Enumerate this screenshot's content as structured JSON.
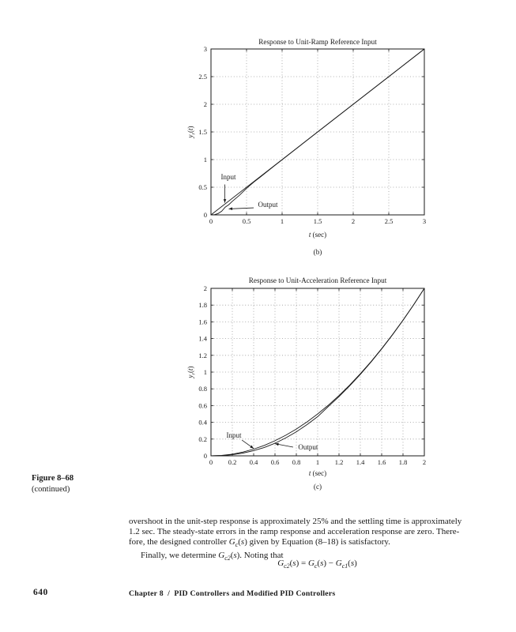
{
  "colors": {
    "ink": "#1a1a1a",
    "grid": "#9a9a9a"
  },
  "figure": {
    "label": "Figure 8–68",
    "sublabel": "(continued)"
  },
  "footer": {
    "page_number": "640",
    "chapter": "Chapter 8  /  PID Controllers and Modified PID Controllers"
  },
  "paragraph": {
    "lines": [
      {
        "indent": false,
        "parts": [
          {
            "t": "overshoot in the unit-step response is approximately 25% and the settling time is approximately"
          }
        ]
      },
      {
        "indent": false,
        "parts": [
          {
            "t": "1.2 sec. The steady-state errors in the ramp response and acceleration response are zero. There-"
          }
        ]
      },
      {
        "indent": false,
        "parts": [
          {
            "t": "fore, the designed controller "
          },
          {
            "t": "G",
            "s": "i"
          },
          {
            "t": "c",
            "s": "sub i"
          },
          {
            "t": "("
          },
          {
            "t": "s",
            "s": "i"
          },
          {
            "t": ") given by Equation (8–18) is satisfactory."
          }
        ]
      },
      {
        "indent": true,
        "parts": [
          {
            "t": "Finally, we determine "
          },
          {
            "t": "G",
            "s": "i"
          },
          {
            "t": "c2",
            "s": "sub i"
          },
          {
            "t": "("
          },
          {
            "t": "s",
            "s": "i"
          },
          {
            "t": "). Noting that"
          }
        ]
      }
    ]
  },
  "equation": {
    "parts": [
      {
        "t": "G",
        "s": "i"
      },
      {
        "t": "c2",
        "s": "sub i"
      },
      {
        "t": "("
      },
      {
        "t": "s",
        "s": "i"
      },
      {
        "t": ") = "
      },
      {
        "t": "G",
        "s": "i"
      },
      {
        "t": "c",
        "s": "sub i"
      },
      {
        "t": "("
      },
      {
        "t": "s",
        "s": "i"
      },
      {
        "t": ") − "
      },
      {
        "t": "G",
        "s": "i"
      },
      {
        "t": "c1",
        "s": "sub i"
      },
      {
        "t": "("
      },
      {
        "t": "s",
        "s": "i"
      },
      {
        "t": ")"
      }
    ]
  },
  "chart_data": [
    {
      "type": "line",
      "title": "Response to Unit-Ramp Reference Input",
      "sublabel": "(b)",
      "xlabel": "t (sec)",
      "ylabel": "yr(t)",
      "xlabel_parts": [
        {
          "t": "t",
          "s": "i"
        },
        {
          "t": " (sec)"
        }
      ],
      "ylabel_parts": [
        {
          "t": "y",
          "s": "i"
        },
        {
          "t": "r",
          "s": "sub i"
        },
        {
          "t": "("
        },
        {
          "t": "t",
          "s": "i"
        },
        {
          "t": ")"
        }
      ],
      "xlim": [
        0,
        3
      ],
      "ylim": [
        0,
        3
      ],
      "grid": true,
      "xticks": {
        "values": [
          0,
          0.5,
          1,
          1.5,
          2,
          2.5,
          3
        ],
        "labels": [
          "0",
          "0.5",
          "1",
          "1.5",
          "2",
          "2.5",
          "3"
        ]
      },
      "yticks": {
        "values": [
          0,
          0.5,
          1,
          1.5,
          2,
          2.5,
          3
        ],
        "labels": [
          "0",
          "0.5",
          "1",
          "1.5",
          "2",
          "2.5",
          "3"
        ]
      },
      "series": [
        {
          "name": "Input",
          "x": [
            0,
            3
          ],
          "y": [
            0,
            3
          ]
        },
        {
          "name": "Output",
          "x": [
            0,
            0.05,
            0.1,
            0.15,
            0.2,
            0.25,
            0.3,
            0.4,
            0.5,
            0.6,
            0.7,
            0.9,
            1,
            1.5,
            2,
            2.5,
            3
          ],
          "y": [
            0,
            0.005,
            0.025,
            0.065,
            0.14,
            0.185,
            0.245,
            0.355,
            0.48,
            0.59,
            0.692,
            0.895,
            0.995,
            1.5,
            2,
            2.5,
            3
          ]
        }
      ],
      "annotations": [
        {
          "label": "Input",
          "tx": 0.245,
          "ty": 0.64,
          "x1": 0.195,
          "y1": 0.55,
          "x2": 0.195,
          "y2": 0.22
        },
        {
          "label": "Output",
          "tx": 0.8,
          "ty": 0.143,
          "x1": 0.6,
          "y1": 0.128,
          "x2": 0.25,
          "y2": 0.108
        }
      ]
    },
    {
      "type": "line",
      "title": "Response to Unit-Acceleration Reference Input",
      "sublabel": "(c)",
      "xlabel": "t (sec)",
      "ylabel": "yr(t)",
      "xlabel_parts": [
        {
          "t": "t",
          "s": "i"
        },
        {
          "t": " (sec)"
        }
      ],
      "ylabel_parts": [
        {
          "t": "y",
          "s": "i"
        },
        {
          "t": "r",
          "s": "sub i"
        },
        {
          "t": "("
        },
        {
          "t": "t",
          "s": "i"
        },
        {
          "t": ")"
        }
      ],
      "xlim": [
        0,
        2
      ],
      "ylim": [
        0,
        2
      ],
      "grid": true,
      "xticks": {
        "values": [
          0,
          0.2,
          0.4,
          0.6,
          0.8,
          1,
          1.2,
          1.4,
          1.6,
          1.8,
          2
        ],
        "labels": [
          "0",
          "0.2",
          "0.4",
          "0.6",
          "0.8",
          "1",
          "1.2",
          "1.4",
          "1.6",
          "1.8",
          "2"
        ]
      },
      "yticks": {
        "values": [
          0,
          0.2,
          0.4,
          0.6,
          0.8,
          1,
          1.2,
          1.4,
          1.6,
          1.8,
          2
        ],
        "labels": [
          "0",
          "0.2",
          "0.4",
          "0.6",
          "0.8",
          "1",
          "1.2",
          "1.4",
          "1.6",
          "1.8",
          "2"
        ]
      },
      "series": [
        {
          "name": "Input",
          "x": [
            0,
            0.1,
            0.2,
            0.3,
            0.4,
            0.5,
            0.6,
            0.7,
            0.8,
            0.9,
            1,
            1.1,
            1.2,
            1.3,
            1.4,
            1.5,
            1.6,
            1.7,
            1.8,
            1.9,
            2
          ],
          "y": [
            0,
            0.005,
            0.02,
            0.045,
            0.08,
            0.125,
            0.18,
            0.245,
            0.32,
            0.405,
            0.5,
            0.605,
            0.72,
            0.845,
            0.98,
            1.125,
            1.28,
            1.445,
            1.62,
            1.805,
            2
          ]
        },
        {
          "name": "Output",
          "x": [
            0,
            0.1,
            0.2,
            0.3,
            0.4,
            0.5,
            0.6,
            0.7,
            0.8,
            0.9,
            1,
            1.1,
            1.2,
            1.3,
            1.4,
            1.5,
            1.6,
            1.7,
            1.8,
            1.9,
            2
          ],
          "y": [
            0,
            0.003,
            0.013,
            0.033,
            0.062,
            0.1,
            0.15,
            0.213,
            0.287,
            0.373,
            0.468,
            0.59,
            0.708,
            0.836,
            0.973,
            1.12,
            1.276,
            1.442,
            1.618,
            1.804,
            2
          ]
        }
      ],
      "annotations": [
        {
          "label": "Input",
          "tx": 0.215,
          "ty": 0.215,
          "x1": 0.29,
          "y1": 0.188,
          "x2": 0.4,
          "y2": 0.088
        },
        {
          "label": "Output",
          "tx": 0.91,
          "ty": 0.075,
          "x1": 0.77,
          "y1": 0.104,
          "x2": 0.6,
          "y2": 0.145
        }
      ]
    }
  ]
}
